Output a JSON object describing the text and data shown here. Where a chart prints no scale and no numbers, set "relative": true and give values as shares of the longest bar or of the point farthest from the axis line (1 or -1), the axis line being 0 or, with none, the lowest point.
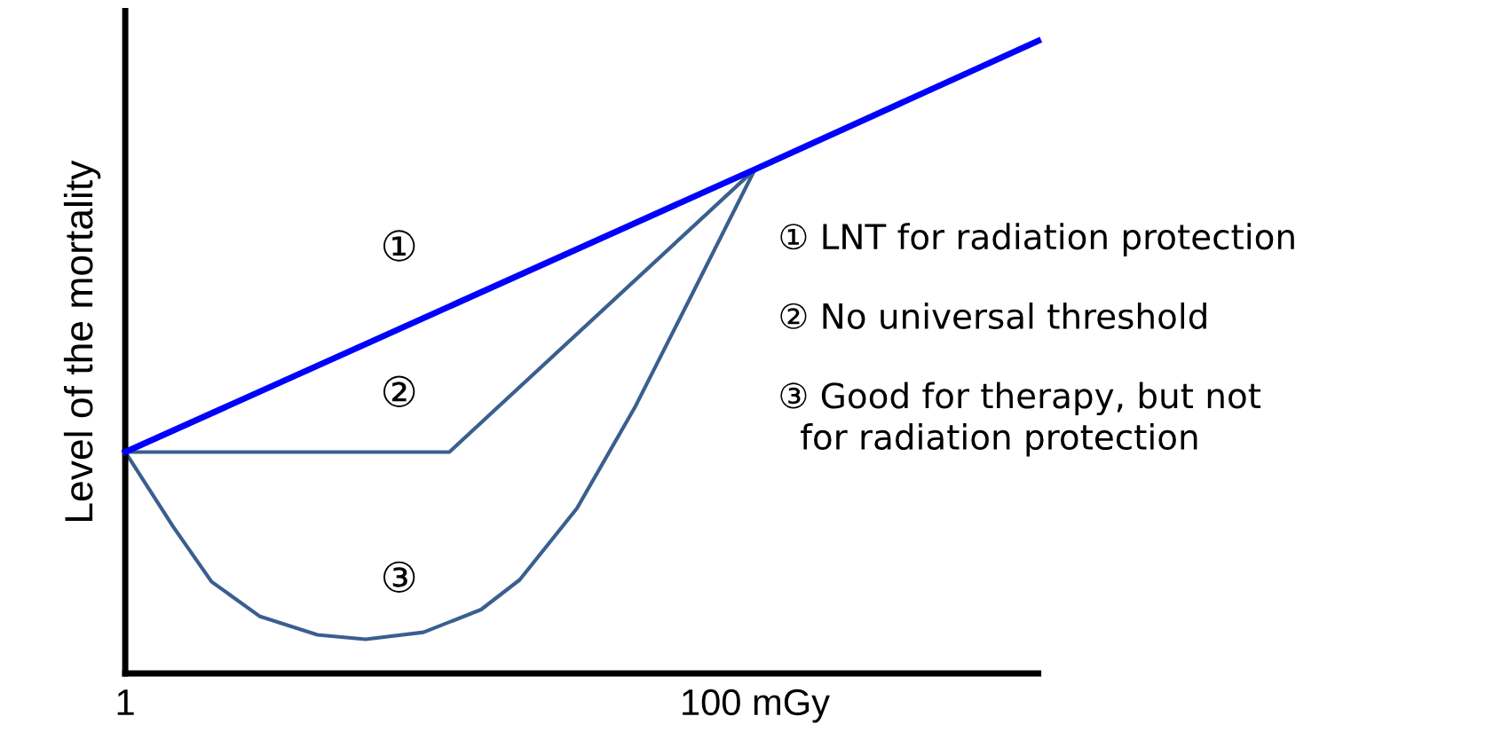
{
  "chart_data": {
    "type": "line",
    "relative": true,
    "log": "x",
    "ylabel": "Level of the mortality",
    "xlim": [
      1,
      794
    ],
    "xticks": [
      1,
      {
        "value": 100,
        "label": "100 mGy"
      }
    ],
    "tick_labels": "x",
    "grid": false,
    "legend": false,
    "marker": "none",
    "line_style": "solid",
    "series": [
      {
        "color": "#0000ff",
        "x": [
          1,
          100,
          794
        ],
        "values": [
          0.35,
          0.797,
          1
        ]
      },
      {
        "color": "#3a5f8f",
        "x": [
          1,
          10.7,
          100
        ],
        "values": [
          0.35,
          0.35,
          0.797
        ]
      },
      {
        "color": "#3a5f8f",
        "x": [
          1,
          1.42,
          1.88,
          2.68,
          4.08,
          5.8,
          8.85,
          13.5,
          17.9,
          27.2,
          41.5,
          63.4,
          100
        ],
        "values": [
          0.35,
          0.232,
          0.145,
          0.09,
          0.061,
          0.054,
          0.065,
          0.101,
          0.148,
          0.261,
          0.42,
          0.601,
          0.797
        ]
      }
    ],
    "annotations": [
      "①",
      "②",
      "③",
      "① LNT for radiation protection",
      "② No universal threshold",
      "③ Good for therapy, but not\n  for radiation protection"
    ]
  }
}
